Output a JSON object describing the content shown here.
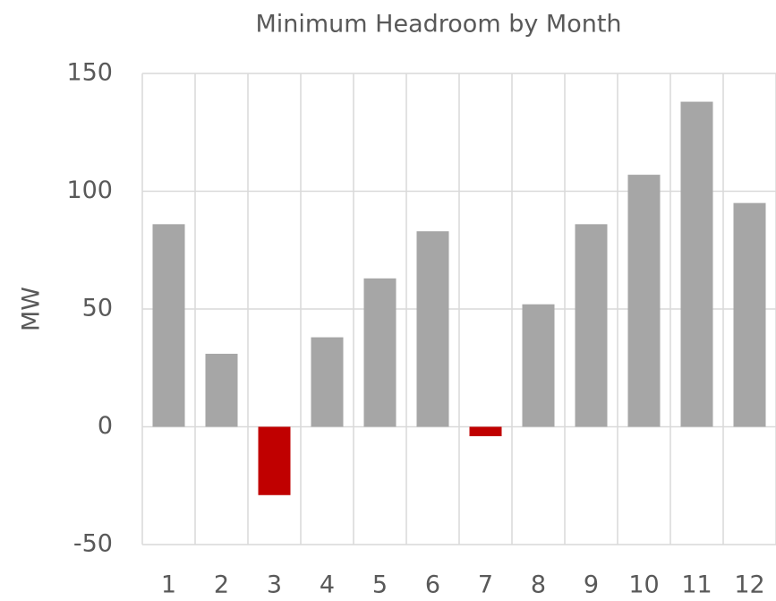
{
  "chart_data": {
    "type": "bar",
    "title": "Minimum Headroom by Month",
    "y_label": "MW",
    "categories": [
      "1",
      "2",
      "3",
      "4",
      "5",
      "6",
      "7",
      "8",
      "9",
      "10",
      "11",
      "12"
    ],
    "values": [
      86,
      31,
      -29,
      38,
      63,
      83,
      -4,
      52,
      86,
      107,
      138,
      95
    ],
    "color": "#a6a6a6",
    "negative_color": "#c00000",
    "ylim": [
      -50,
      150
    ],
    "yticks": [
      -50,
      0,
      50,
      100,
      150
    ],
    "grid": true
  }
}
